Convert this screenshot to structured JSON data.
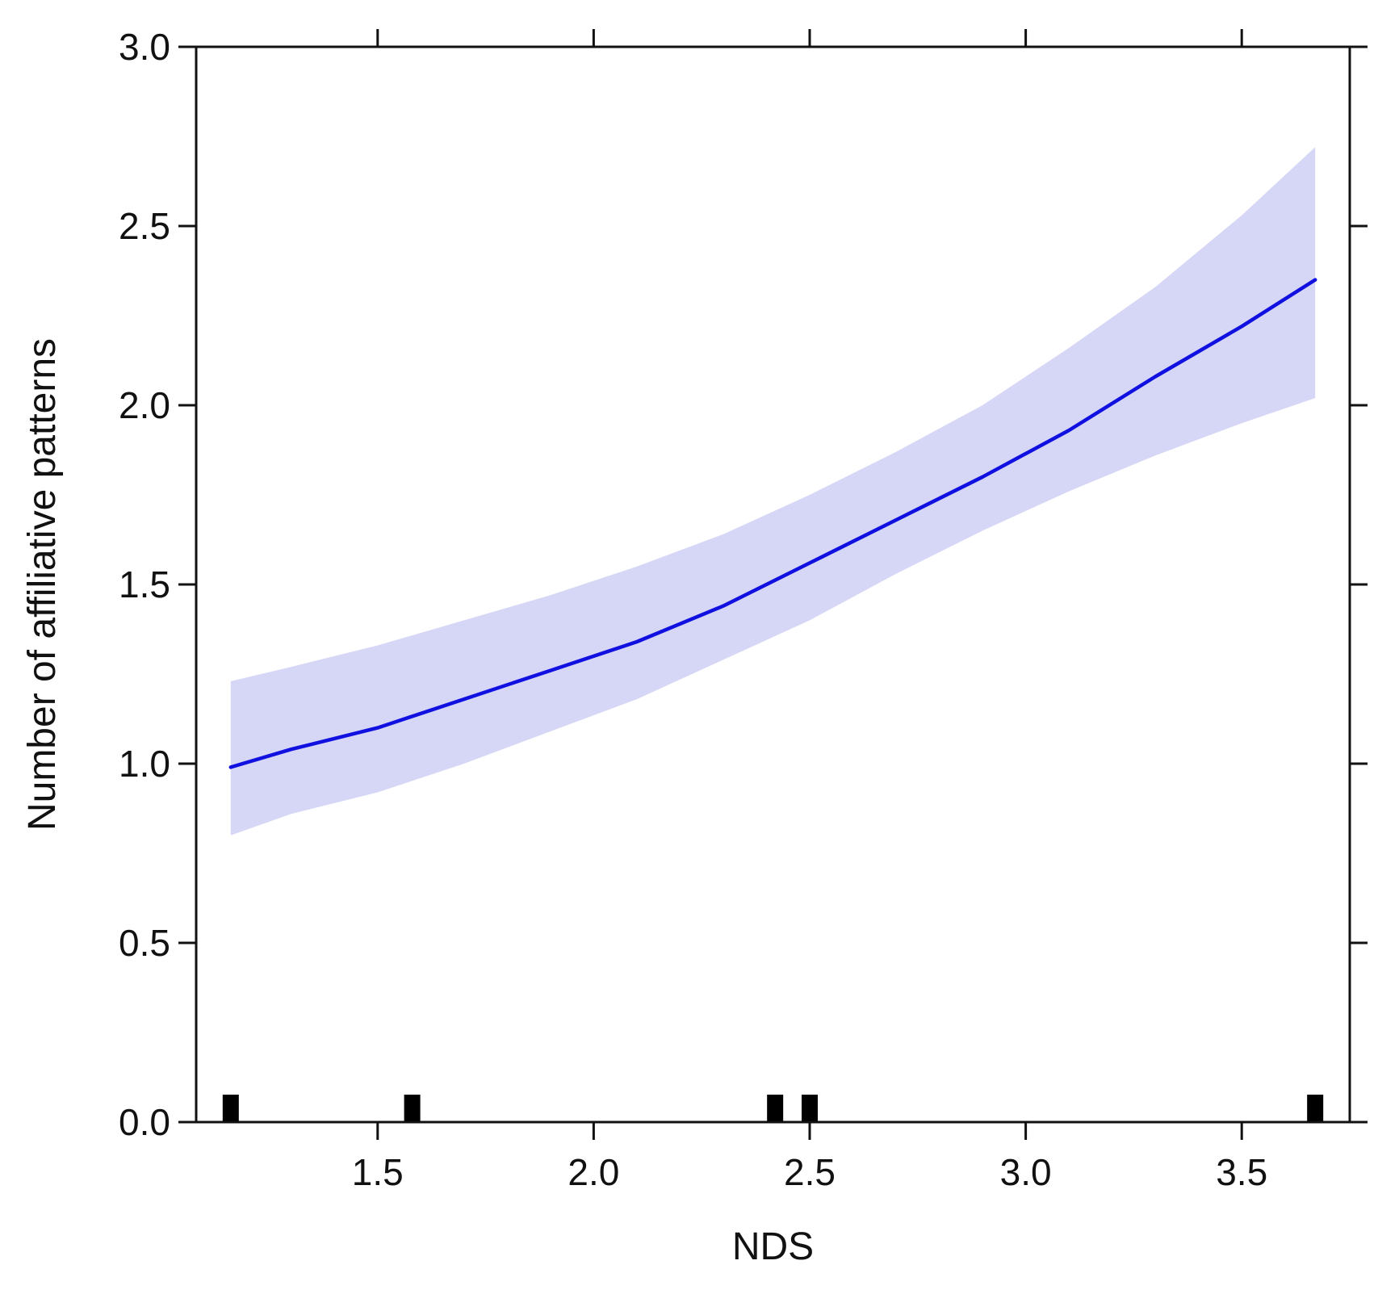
{
  "chart_data": {
    "type": "line",
    "title": "",
    "xlabel": "NDS",
    "ylabel": "Number of affiliative patterns",
    "xlim": [
      1.08,
      3.75
    ],
    "ylim": [
      0.0,
      3.0
    ],
    "x_ticks": [
      1.5,
      2.0,
      2.5,
      3.0,
      3.5
    ],
    "x_tick_labels": [
      "1.5",
      "2.0",
      "2.5",
      "3.0",
      "3.5"
    ],
    "y_ticks": [
      0.0,
      0.5,
      1.0,
      1.5,
      2.0,
      2.5,
      3.0
    ],
    "y_tick_labels": [
      "0.0",
      "0.5",
      "1.0",
      "1.5",
      "2.0",
      "2.5",
      "3.0"
    ],
    "grid": false,
    "series": [
      {
        "line_color": "#1010e0",
        "band_color": "#d6d6f6",
        "x": [
          1.16,
          1.3,
          1.5,
          1.7,
          1.9,
          2.1,
          2.3,
          2.5,
          2.7,
          2.9,
          3.1,
          3.3,
          3.5,
          3.67
        ],
        "y": [
          0.99,
          1.04,
          1.1,
          1.18,
          1.26,
          1.34,
          1.44,
          1.56,
          1.68,
          1.8,
          1.93,
          2.08,
          2.22,
          2.35
        ],
        "lower": [
          0.8,
          0.86,
          0.92,
          1.0,
          1.09,
          1.18,
          1.29,
          1.4,
          1.53,
          1.65,
          1.76,
          1.86,
          1.95,
          2.02
        ],
        "upper": [
          1.23,
          1.27,
          1.33,
          1.4,
          1.47,
          1.55,
          1.64,
          1.75,
          1.87,
          2.0,
          2.16,
          2.33,
          2.53,
          2.72
        ]
      }
    ],
    "rug": [
      1.16,
      1.58,
      2.42,
      2.5,
      3.67
    ]
  }
}
